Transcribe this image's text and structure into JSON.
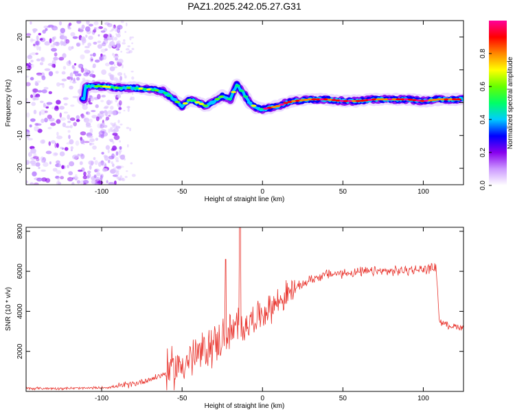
{
  "title": "PAZ1.2025.242.05.27.G31",
  "chart_data": [
    {
      "type": "heatmap",
      "xlabel": "Height of straight line (km)",
      "ylabel": "Frequency (Hz)",
      "xlim": [
        -147,
        125
      ],
      "ylim": [
        -25,
        25
      ],
      "xticks": [
        -100,
        -50,
        0,
        50,
        100
      ],
      "yticks": [
        -20,
        -10,
        0,
        10,
        20
      ],
      "ridge": {
        "x": [
          -110,
          -100,
          -90,
          -80,
          -70,
          -62,
          -55,
          -50,
          -45,
          -40,
          -35,
          -30,
          -25,
          -20,
          -16,
          -12,
          -8,
          -4,
          0,
          5,
          10,
          15,
          20,
          30,
          40,
          50,
          60,
          70,
          80,
          90,
          100,
          110,
          125
        ],
        "y": [
          5,
          5,
          4.5,
          4.5,
          4,
          3.5,
          1,
          -1,
          1,
          0,
          -1,
          0.5,
          2,
          1,
          5.5,
          3,
          0,
          -1.5,
          -2,
          -1.5,
          -1,
          0,
          0.5,
          1,
          1,
          0.5,
          0.5,
          1,
          1,
          1,
          0.5,
          1,
          1
        ]
      },
      "colorbar": {
        "label": "Normalized spectral amplitude",
        "range": [
          0,
          1
        ],
        "ticks": [
          0.0,
          0.2,
          0.4,
          0.6,
          0.8
        ],
        "colors": [
          "#ffffff",
          "#cc99ff",
          "#8800ee",
          "#0000ff",
          "#00ccff",
          "#00ff66",
          "#66ff00",
          "#ffff00",
          "#ff8800",
          "#ff0000",
          "#ff0099"
        ]
      }
    },
    {
      "type": "line",
      "xlabel": "Height of straight line (km)",
      "ylabel": "SNR (10 * v/v)",
      "xlim": [
        -147,
        125
      ],
      "ylim": [
        0,
        8200
      ],
      "xticks": [
        -100,
        -50,
        0,
        50,
        100
      ],
      "yticks": [
        2000,
        4000,
        6000,
        8000
      ],
      "color": "#e8312a",
      "series": [
        {
          "x": [
            -147,
            -130,
            -110,
            -100,
            -90,
            -80,
            -70,
            -60,
            -50,
            -40,
            -30,
            -20,
            -10,
            0,
            10,
            20,
            30,
            40,
            50,
            60,
            70,
            80,
            90,
            100,
            108,
            110,
            115,
            125
          ],
          "y": [
            150,
            150,
            160,
            180,
            250,
            380,
            600,
            900,
            1400,
            1800,
            2400,
            2900,
            3400,
            3900,
            4500,
            5100,
            5600,
            5850,
            5900,
            5950,
            6000,
            6000,
            6050,
            6100,
            6200,
            3500,
            3300,
            3200
          ]
        }
      ],
      "spikes": [
        {
          "x": -23,
          "y": 6600
        },
        {
          "x": -14,
          "y": 8200
        }
      ]
    }
  ]
}
